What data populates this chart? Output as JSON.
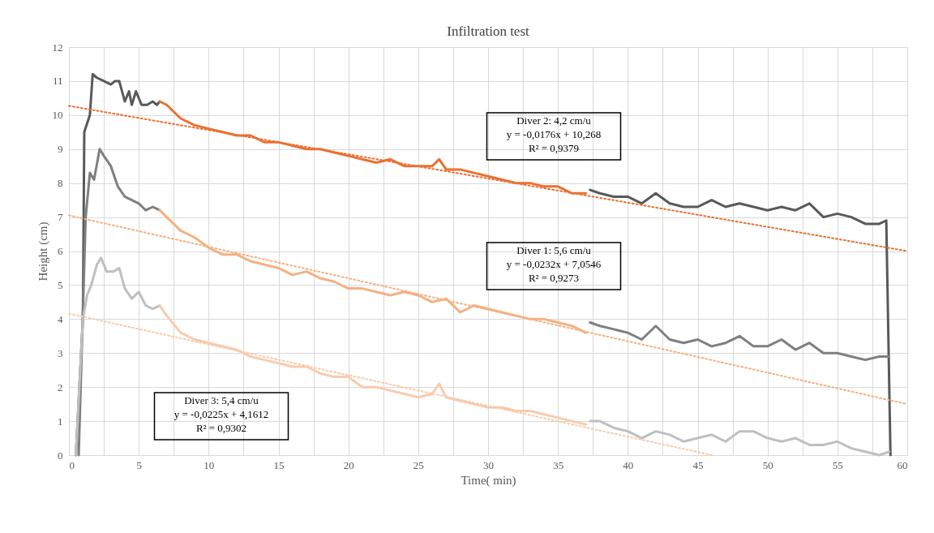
{
  "chart_data": {
    "type": "line",
    "title": "Infiltration test",
    "xlabel": "Time( min)",
    "ylabel": "Height  (cm)",
    "xlim": [
      0,
      60
    ],
    "ylim": [
      0,
      12
    ],
    "xticks": [
      0,
      {
        "value": 2.5,
        "label": null
      },
      5,
      {
        "value": 7.5,
        "label": null
      },
      10,
      {
        "value": 12.5,
        "label": null
      },
      15,
      {
        "value": 17.5,
        "label": null
      },
      20,
      {
        "value": 22.5,
        "label": null
      },
      25,
      {
        "value": 27.5,
        "label": null
      },
      30,
      {
        "value": 32.5,
        "label": null
      },
      35,
      {
        "value": 37.5,
        "label": null
      },
      40,
      {
        "value": 42.5,
        "label": null
      },
      45,
      {
        "value": 47.5,
        "label": null
      },
      50,
      {
        "value": 52.5,
        "label": null
      },
      55,
      {
        "value": 57.5,
        "label": null
      },
      60
    ],
    "yticks": [
      0,
      1,
      2,
      3,
      4,
      5,
      6,
      7,
      8,
      9,
      10,
      11,
      12
    ],
    "grid": true,
    "line_style": "solid",
    "series": [
      {
        "color": "#595959",
        "x": [
          0.5,
          1.0,
          1.1,
          1.5,
          1.7,
          2,
          2.5,
          3,
          3.3,
          3.6,
          4,
          4.3,
          4.5,
          4.8,
          5.2,
          5.6,
          6,
          6.3,
          6.5
        ],
        "values": [
          0,
          4,
          9.5,
          10,
          11.2,
          11.1,
          11.0,
          10.9,
          11.0,
          11.0,
          10.4,
          10.7,
          10.3,
          10.7,
          10.3,
          10.3,
          10.4,
          10.3,
          10.4
        ]
      },
      {
        "color": "#e97132",
        "x": [
          6.5,
          7,
          8,
          9,
          10,
          11,
          12,
          13,
          14,
          15,
          16,
          17,
          18,
          19,
          20,
          21,
          22,
          23,
          24,
          25,
          26,
          26.5,
          27,
          28,
          29,
          30,
          31,
          32,
          33,
          34,
          35,
          36,
          37
        ],
        "values": [
          10.4,
          10.3,
          9.9,
          9.7,
          9.6,
          9.5,
          9.4,
          9.4,
          9.2,
          9.2,
          9.1,
          9.0,
          9.0,
          8.9,
          8.8,
          8.7,
          8.6,
          8.7,
          8.5,
          8.5,
          8.5,
          8.7,
          8.4,
          8.4,
          8.3,
          8.2,
          8.1,
          8.0,
          8.0,
          7.9,
          7.9,
          7.7,
          7.7
        ]
      },
      {
        "color": "#595959",
        "x": [
          37.3,
          38,
          39,
          40,
          41,
          42,
          43,
          44,
          45,
          46,
          47,
          48,
          49,
          50,
          51,
          52,
          53,
          54,
          55,
          56,
          57,
          58,
          58.5,
          58.8
        ],
        "values": [
          7.8,
          7.7,
          7.6,
          7.6,
          7.4,
          7.7,
          7.4,
          7.3,
          7.3,
          7.5,
          7.3,
          7.4,
          7.3,
          7.2,
          7.3,
          7.2,
          7.4,
          7.0,
          7.1,
          7.0,
          6.8,
          6.8,
          6.9,
          0
        ]
      },
      {
        "color": "#7f7f7f",
        "x": [
          0.7,
          1.2,
          1.5,
          1.8,
          2.2,
          2.5,
          3,
          3.5,
          4,
          4.5,
          5,
          5.5,
          6,
          6.5
        ],
        "values": [
          0,
          7.0,
          8.3,
          8.1,
          9.0,
          8.8,
          8.5,
          7.9,
          7.6,
          7.5,
          7.4,
          7.2,
          7.3,
          7.2
        ]
      },
      {
        "color": "#f4b183",
        "x": [
          6.5,
          7,
          8,
          9,
          10,
          11,
          12,
          13,
          14,
          15,
          16,
          17,
          18,
          19,
          20,
          21,
          22,
          23,
          24,
          25,
          26,
          27,
          28,
          29,
          30,
          31,
          32,
          33,
          34,
          35,
          36,
          37
        ],
        "values": [
          7.2,
          7.0,
          6.6,
          6.4,
          6.1,
          5.9,
          5.9,
          5.7,
          5.6,
          5.5,
          5.3,
          5.4,
          5.2,
          5.1,
          4.9,
          4.9,
          4.8,
          4.7,
          4.8,
          4.7,
          4.5,
          4.6,
          4.2,
          4.4,
          4.3,
          4.2,
          4.1,
          4.0,
          4.0,
          3.9,
          3.8,
          3.6
        ]
      },
      {
        "color": "#7f7f7f",
        "x": [
          37.3,
          38,
          39,
          40,
          41,
          42,
          43,
          44,
          45,
          46,
          47,
          48,
          49,
          50,
          51,
          52,
          53,
          54,
          55,
          56,
          57,
          58,
          58.7
        ],
        "values": [
          3.9,
          3.8,
          3.7,
          3.6,
          3.4,
          3.8,
          3.4,
          3.3,
          3.4,
          3.2,
          3.3,
          3.5,
          3.2,
          3.2,
          3.4,
          3.1,
          3.3,
          3.0,
          3.0,
          2.9,
          2.8,
          2.9,
          2.9
        ]
      },
      {
        "color": "#bfbfbf",
        "x": [
          0.5,
          1,
          1.3,
          1.6,
          2,
          2.3,
          2.7,
          3.2,
          3.6,
          4,
          4.5,
          5,
          5.5,
          6,
          6.5
        ],
        "values": [
          0,
          4.0,
          4.7,
          5.0,
          5.6,
          5.8,
          5.4,
          5.4,
          5.5,
          4.9,
          4.6,
          4.8,
          4.4,
          4.3,
          4.4
        ]
      },
      {
        "color": "#f8cbad",
        "x": [
          6.5,
          7,
          8,
          9,
          10,
          11,
          12,
          13,
          14,
          15,
          16,
          17,
          18,
          19,
          20,
          21,
          22,
          23,
          24,
          25,
          26,
          26.5,
          27,
          28,
          29,
          30,
          31,
          32,
          33,
          34,
          35,
          36,
          37
        ],
        "values": [
          4.4,
          4.1,
          3.6,
          3.4,
          3.3,
          3.2,
          3.1,
          2.9,
          2.8,
          2.7,
          2.6,
          2.6,
          2.4,
          2.3,
          2.3,
          2.0,
          2.0,
          1.9,
          1.8,
          1.7,
          1.8,
          2.1,
          1.7,
          1.6,
          1.5,
          1.4,
          1.4,
          1.3,
          1.3,
          1.2,
          1.1,
          1.0,
          0.9
        ]
      },
      {
        "color": "#bfbfbf",
        "x": [
          37.3,
          38,
          39,
          40,
          41,
          42,
          43,
          44,
          45,
          46,
          47,
          48,
          49,
          50,
          51,
          52,
          53,
          54,
          55,
          56,
          57,
          58,
          58.7
        ],
        "values": [
          1.0,
          1.0,
          0.8,
          0.7,
          0.5,
          0.7,
          0.6,
          0.4,
          0.5,
          0.6,
          0.4,
          0.7,
          0.7,
          0.5,
          0.4,
          0.5,
          0.3,
          0.3,
          0.4,
          0.2,
          0.1,
          0.0,
          0.1
        ]
      },
      {
        "color": "#e97132",
        "line_style": "dotted",
        "x": [
          0,
          60
        ],
        "values": [
          10.27,
          6.0
        ]
      },
      {
        "color": "#f4b183",
        "line_style": "dotted",
        "x": [
          0,
          60
        ],
        "values": [
          7.05,
          1.5
        ]
      },
      {
        "color": "#f8cbad",
        "line_style": "dotted",
        "x": [
          0,
          46
        ],
        "values": [
          4.16,
          0
        ]
      }
    ],
    "annotations": [
      "Diver 2: 4,2 cm/u\ny = -0,0176x + 10,268\nR² = 0,9379",
      "Diver 1: 5,6 cm/u\ny = -0,0232x + 7,0546\nR² = 0,9273",
      "Diver 3: 5,4 cm/u\ny = -0,0225x + 4,1612\nR² = 0,9302"
    ]
  }
}
